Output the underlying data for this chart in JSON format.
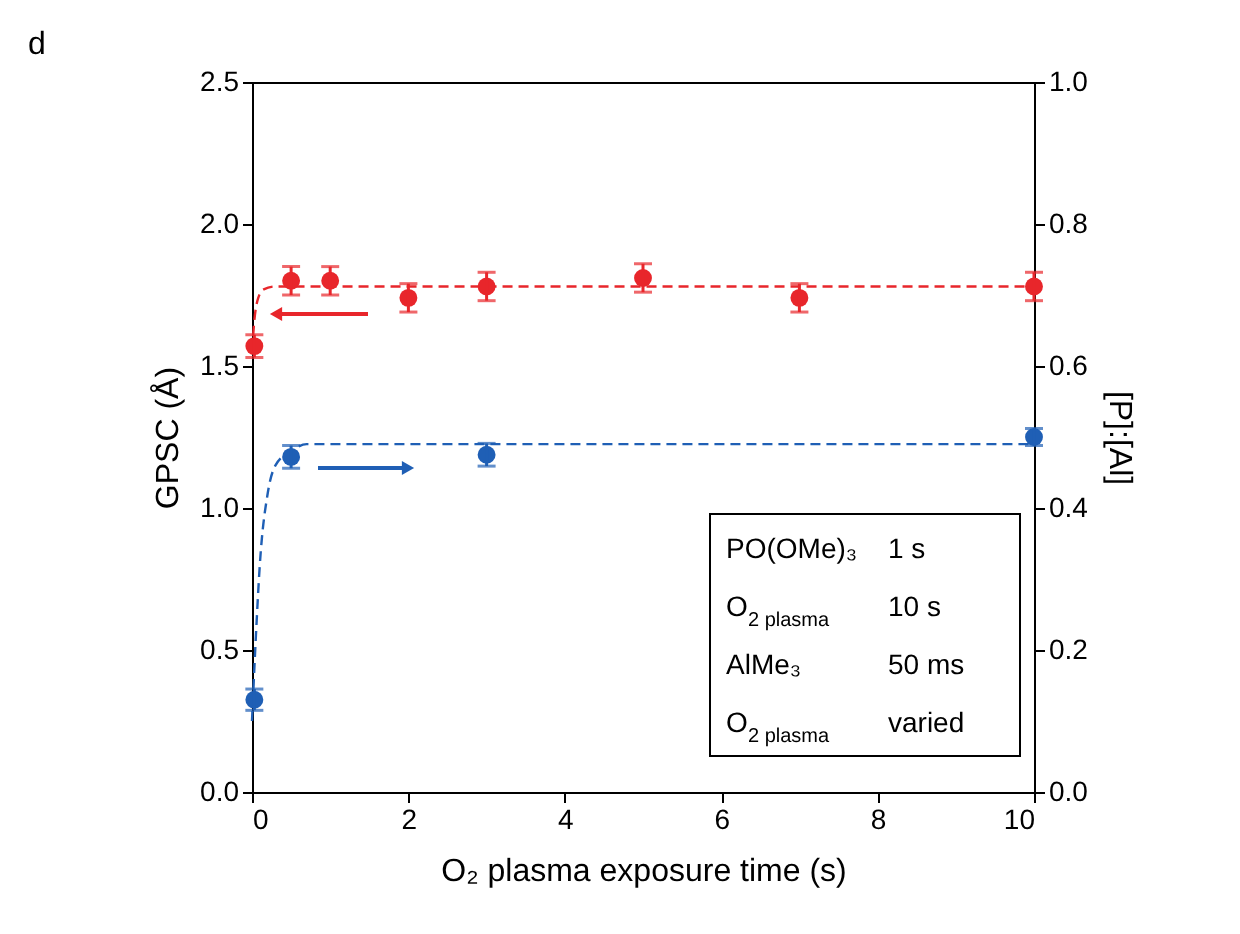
{
  "chart_data": {
    "type": "scatter",
    "xlabel": "O₂ plasma exposure time (s)",
    "ylabel": "GPSC (Å)",
    "y2label": "[P]:[Al]",
    "xlim": [
      0,
      10
    ],
    "xticks": [
      0,
      2,
      4,
      6,
      8,
      10
    ],
    "ylim": [
      0,
      2.5
    ],
    "yticks": [
      {
        "value": 0,
        "label": "0.0"
      },
      0.5,
      {
        "value": 1,
        "label": "1.0"
      },
      1.5,
      {
        "value": 2,
        "label": "2.0"
      },
      2.5
    ],
    "y2lim": [
      0,
      1.0
    ],
    "y2ticks": [
      {
        "value": 0,
        "label": "0.0"
      },
      0.2,
      0.4,
      0.6,
      0.8,
      {
        "value": 1,
        "label": "1.0"
      }
    ],
    "grid": false,
    "series": [
      {
        "marker": "circle",
        "color": "#e8262b",
        "x": [
          0.03,
          0.5,
          1,
          2,
          3,
          5,
          7,
          10
        ],
        "values": [
          1.57,
          1.8,
          1.8,
          1.74,
          1.78,
          1.81,
          1.74,
          1.78
        ],
        "errors": [
          0.04,
          0.05,
          0.05,
          0.05,
          0.05,
          0.05,
          0.05,
          0.05
        ]
      },
      {
        "type": "line",
        "line_style": "dashed",
        "marker": "none",
        "color": "#e8262b",
        "x": [
          0,
          0.03,
          0.08,
          0.15,
          0.3,
          0.5,
          10
        ],
        "values": [
          1.55,
          1.66,
          1.74,
          1.77,
          1.78,
          1.78,
          1.78
        ]
      },
      {
        "axis": "y2",
        "marker": "circle",
        "color": "#1f5fb5",
        "x": [
          0.03,
          0.5,
          3,
          10
        ],
        "values": [
          0.13,
          0.472,
          0.475,
          0.5
        ],
        "errors": [
          0.015,
          0.016,
          0.016,
          0.012
        ]
      },
      {
        "type": "line",
        "axis": "y2",
        "line_style": "dashed",
        "marker": "none",
        "color": "#1f5fb5",
        "x": [
          0,
          0.05,
          0.1,
          0.2,
          0.3,
          0.5,
          0.7,
          10
        ],
        "values": [
          0.1,
          0.22,
          0.32,
          0.42,
          0.46,
          0.48,
          0.49,
          0.49
        ]
      }
    ],
    "annotations": [
      "d",
      "PO(OMe)₃",
      "1 s",
      "O$_{2 plasma}$",
      "10 s",
      "AlMe₃",
      "50 ms",
      "O$_{2 plasma}$",
      "varied"
    ]
  }
}
